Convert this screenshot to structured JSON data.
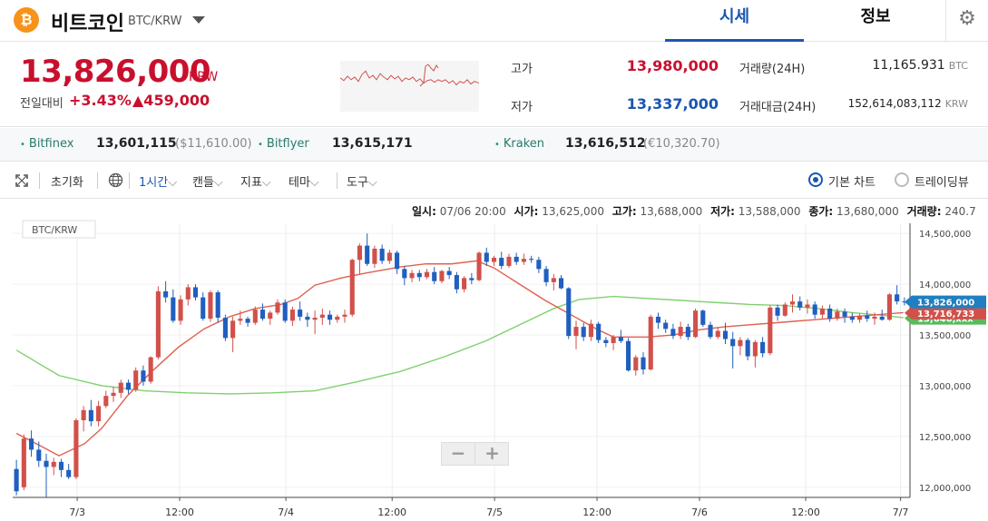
{
  "header": {
    "coin_icon": "bitcoin-icon",
    "coin_symbol": "₿",
    "coin_name": "비트코인",
    "pair": "BTC/KRW",
    "tabs": [
      {
        "label": "시세",
        "active": true
      },
      {
        "label": "정보",
        "active": false
      }
    ],
    "settings_icon": "gear-icon",
    "settings_glyph": "⚙"
  },
  "price": {
    "current": "13,826,000",
    "unit": "KRW",
    "change_label": "전일대비",
    "change_pct": "+3.43%",
    "change_abs": "▲459,000",
    "high_label": "고가",
    "high": "13,980,000",
    "low_label": "저가",
    "low": "13,337,000",
    "volume_label": "거래량(24H)",
    "volume": "11,165.931",
    "volume_unit": "BTC",
    "amount_label": "거래대금(24H)",
    "amount": "152,614,083,112",
    "amount_unit": "KRW"
  },
  "exchanges": [
    {
      "name": "Bitfinex",
      "price": "13,601,115",
      "sub": "($11,610.00)"
    },
    {
      "name": "Bitflyer",
      "price": "13,615,171",
      "sub": ""
    },
    {
      "name": "Kraken",
      "price": "13,616,512",
      "sub": "(€10,320.70)"
    }
  ],
  "toolbar": {
    "fullscreen_icon": "expand-icon",
    "reset": "초기화",
    "globe_icon": "globe-icon",
    "interval": "1시간",
    "candle": "캔들",
    "indicator": "지표",
    "theme": "테마",
    "tools": "도구",
    "chart_basic": "기본 차트",
    "chart_tradingview": "트레이딩뷰",
    "caret": "⌵"
  },
  "candle_info": {
    "time_label": "일시:",
    "time": "07/06 20:00",
    "open_label": "시가:",
    "open": "13,625,000",
    "high_label": "고가:",
    "high": "13,688,000",
    "low_label": "저가:",
    "low": "13,588,000",
    "close_label": "종가:",
    "close": "13,680,000",
    "volume_label": "거래량:",
    "volume": "240.7"
  },
  "zoom": {
    "minus": "−",
    "plus": "+"
  },
  "colors": {
    "up": "#d2504a",
    "down": "#1f5fbf",
    "ma_short": "#e0604f",
    "ma_long": "#7fd06f",
    "accent": "#1a56b0"
  },
  "chart_data": {
    "type": "candlestick",
    "pair_label": "BTC/KRW",
    "x_tick_labels": [
      "7/3",
      "12:00",
      "7/4",
      "12:00",
      "7/5",
      "12:00",
      "7/6",
      "12:00",
      "7/7"
    ],
    "y_tick_labels": [
      "12,000,000",
      "12,500,000",
      "13,000,000",
      "13,500,000",
      "14,000,000",
      "14,500,000"
    ],
    "ylim": [
      11900000,
      14600000
    ],
    "price_tags": [
      {
        "label": "13,826,000",
        "value": 13826000,
        "color": "#1f7fc0"
      },
      {
        "label": "13,716,733",
        "value": 13716733,
        "color": "#d2504a"
      },
      {
        "label": "13,646,xxx",
        "value": 13665000,
        "color": "#5cb85c"
      }
    ],
    "candles": [
      [
        12180000,
        12270000,
        11920000,
        11960000
      ],
      [
        12000000,
        12520000,
        11970000,
        12480000
      ],
      [
        12480000,
        12560000,
        12300000,
        12370000
      ],
      [
        12370000,
        12450000,
        12200000,
        12260000
      ],
      [
        12260000,
        12330000,
        11900000,
        12200000
      ],
      [
        12200000,
        12290000,
        12120000,
        12250000
      ],
      [
        12250000,
        12280000,
        12100000,
        12170000
      ],
      [
        12170000,
        12230000,
        12080000,
        12100000
      ],
      [
        12100000,
        12680000,
        12080000,
        12660000
      ],
      [
        12660000,
        12800000,
        12550000,
        12760000
      ],
      [
        12760000,
        12860000,
        12600000,
        12650000
      ],
      [
        12650000,
        12850000,
        12600000,
        12800000
      ],
      [
        12800000,
        12950000,
        12780000,
        12900000
      ],
      [
        12900000,
        12990000,
        12840000,
        12930000
      ],
      [
        12930000,
        13060000,
        12880000,
        13030000
      ],
      [
        13030000,
        13060000,
        12920000,
        12960000
      ],
      [
        12960000,
        13180000,
        12940000,
        13150000
      ],
      [
        13150000,
        13200000,
        13000000,
        13040000
      ],
      [
        13040000,
        13290000,
        13020000,
        13280000
      ],
      [
        13280000,
        13980000,
        13260000,
        13930000
      ],
      [
        13930000,
        14030000,
        13820000,
        13870000
      ],
      [
        13870000,
        13950000,
        13620000,
        13640000
      ],
      [
        13640000,
        13890000,
        13600000,
        13850000
      ],
      [
        13850000,
        14000000,
        13790000,
        13970000
      ],
      [
        13970000,
        14000000,
        13840000,
        13870000
      ],
      [
        13870000,
        13920000,
        13640000,
        13660000
      ],
      [
        13660000,
        13940000,
        13630000,
        13920000
      ],
      [
        13920000,
        13940000,
        13620000,
        13670000
      ],
      [
        13670000,
        13700000,
        13440000,
        13470000
      ],
      [
        13470000,
        13680000,
        13330000,
        13640000
      ],
      [
        13640000,
        13740000,
        13600000,
        13660000
      ],
      [
        13660000,
        13680000,
        13580000,
        13620000
      ],
      [
        13620000,
        13780000,
        13600000,
        13750000
      ],
      [
        13750000,
        13810000,
        13640000,
        13660000
      ],
      [
        13660000,
        13740000,
        13600000,
        13720000
      ],
      [
        13720000,
        13850000,
        13700000,
        13820000
      ],
      [
        13820000,
        13850000,
        13620000,
        13640000
      ],
      [
        13640000,
        13780000,
        13590000,
        13750000
      ],
      [
        13750000,
        13830000,
        13640000,
        13680000
      ],
      [
        13680000,
        13720000,
        13580000,
        13650000
      ],
      [
        13650000,
        13740000,
        13510000,
        13670000
      ],
      [
        13670000,
        13760000,
        13600000,
        13700000
      ],
      [
        13700000,
        13740000,
        13600000,
        13650000
      ],
      [
        13650000,
        13700000,
        13620000,
        13680000
      ],
      [
        13680000,
        13750000,
        13620000,
        13700000
      ],
      [
        13700000,
        14250000,
        13680000,
        14240000
      ],
      [
        14240000,
        14400000,
        14100000,
        14380000
      ],
      [
        14380000,
        14500000,
        14180000,
        14200000
      ],
      [
        14200000,
        14380000,
        14160000,
        14350000
      ],
      [
        14350000,
        14390000,
        14200000,
        14230000
      ],
      [
        14230000,
        14340000,
        14200000,
        14310000
      ],
      [
        14310000,
        14330000,
        14100000,
        14150000
      ],
      [
        14150000,
        14180000,
        13990000,
        14060000
      ],
      [
        14060000,
        14140000,
        14020000,
        14110000
      ],
      [
        14110000,
        14140000,
        14030000,
        14070000
      ],
      [
        14070000,
        14150000,
        14050000,
        14120000
      ],
      [
        14120000,
        14170000,
        14000000,
        14030000
      ],
      [
        14030000,
        14140000,
        14010000,
        14130000
      ],
      [
        14130000,
        14170000,
        14050000,
        14090000
      ],
      [
        14090000,
        14120000,
        13910000,
        13950000
      ],
      [
        13950000,
        14080000,
        13920000,
        14060000
      ],
      [
        14060000,
        14110000,
        14000000,
        14040000
      ],
      [
        14040000,
        14320000,
        14030000,
        14310000
      ],
      [
        14310000,
        14360000,
        14180000,
        14220000
      ],
      [
        14220000,
        14280000,
        14180000,
        14260000
      ],
      [
        14260000,
        14320000,
        14150000,
        14180000
      ],
      [
        14180000,
        14300000,
        14160000,
        14270000
      ],
      [
        14270000,
        14310000,
        14190000,
        14220000
      ],
      [
        14220000,
        14300000,
        14190000,
        14250000
      ],
      [
        14250000,
        14280000,
        14210000,
        14240000
      ],
      [
        14240000,
        14270000,
        14110000,
        14150000
      ],
      [
        14150000,
        14180000,
        13980000,
        14020000
      ],
      [
        14020000,
        14100000,
        13940000,
        14060000
      ],
      [
        14060000,
        14090000,
        13950000,
        13960000
      ],
      [
        13960000,
        13970000,
        13460000,
        13490000
      ],
      [
        13490000,
        13640000,
        13360000,
        13580000
      ],
      [
        13580000,
        13620000,
        13440000,
        13480000
      ],
      [
        13480000,
        13650000,
        13440000,
        13610000
      ],
      [
        13610000,
        13630000,
        13420000,
        13450000
      ],
      [
        13450000,
        13480000,
        13380000,
        13420000
      ],
      [
        13420000,
        13500000,
        13350000,
        13480000
      ],
      [
        13480000,
        13550000,
        13420000,
        13440000
      ],
      [
        13440000,
        13470000,
        13140000,
        13150000
      ],
      [
        13150000,
        13300000,
        13100000,
        13280000
      ],
      [
        13280000,
        13330000,
        13110000,
        13160000
      ],
      [
        13160000,
        13700000,
        13150000,
        13680000
      ],
      [
        13680000,
        13720000,
        13560000,
        13620000
      ],
      [
        13620000,
        13650000,
        13520000,
        13560000
      ],
      [
        13560000,
        13610000,
        13460000,
        13490000
      ],
      [
        13490000,
        13630000,
        13460000,
        13580000
      ],
      [
        13580000,
        13610000,
        13450000,
        13480000
      ],
      [
        13480000,
        13760000,
        13470000,
        13740000
      ],
      [
        13740000,
        13750000,
        13580000,
        13600000
      ],
      [
        13600000,
        13630000,
        13460000,
        13480000
      ],
      [
        13480000,
        13570000,
        13460000,
        13540000
      ],
      [
        13540000,
        13620000,
        13410000,
        13460000
      ],
      [
        13460000,
        13530000,
        13170000,
        13390000
      ],
      [
        13390000,
        13480000,
        13300000,
        13450000
      ],
      [
        13450000,
        13470000,
        13250000,
        13290000
      ],
      [
        13290000,
        13450000,
        13180000,
        13430000
      ],
      [
        13430000,
        13480000,
        13280000,
        13320000
      ],
      [
        13320000,
        13790000,
        13300000,
        13770000
      ],
      [
        13770000,
        13800000,
        13640000,
        13690000
      ],
      [
        13690000,
        13820000,
        13680000,
        13800000
      ],
      [
        13800000,
        13900000,
        13720000,
        13830000
      ],
      [
        13830000,
        13880000,
        13740000,
        13770000
      ],
      [
        13770000,
        13850000,
        13710000,
        13800000
      ],
      [
        13800000,
        13830000,
        13660000,
        13700000
      ],
      [
        13700000,
        13790000,
        13660000,
        13760000
      ],
      [
        13760000,
        13800000,
        13630000,
        13660000
      ],
      [
        13660000,
        13760000,
        13640000,
        13730000
      ],
      [
        13730000,
        13760000,
        13620000,
        13680000
      ],
      [
        13680000,
        13720000,
        13620000,
        13650000
      ],
      [
        13650000,
        13710000,
        13620000,
        13690000
      ],
      [
        13690000,
        13740000,
        13630000,
        13660000
      ],
      [
        13660000,
        13720000,
        13600000,
        13680000
      ],
      [
        13680000,
        13750000,
        13640000,
        13650000
      ],
      [
        13650000,
        13910000,
        13640000,
        13900000
      ],
      [
        13900000,
        13990000,
        13800000,
        13830000
      ],
      [
        13830000,
        13870000,
        13790000,
        13826000
      ]
    ],
    "ma_short": [
      [
        0,
        12530000
      ],
      [
        6,
        12400000
      ],
      [
        10,
        12310000
      ],
      [
        16,
        12430000
      ],
      [
        20,
        12580000
      ],
      [
        26,
        12900000
      ],
      [
        32,
        13150000
      ],
      [
        38,
        13380000
      ],
      [
        44,
        13560000
      ],
      [
        50,
        13680000
      ],
      [
        56,
        13760000
      ],
      [
        62,
        13800000
      ],
      [
        66,
        13860000
      ],
      [
        70,
        13990000
      ],
      [
        76,
        14060000
      ],
      [
        82,
        14110000
      ],
      [
        90,
        14170000
      ],
      [
        96,
        14200000
      ],
      [
        102,
        14200000
      ],
      [
        108,
        14230000
      ],
      [
        112,
        14160000
      ],
      [
        118,
        14000000
      ],
      [
        124,
        13840000
      ],
      [
        130,
        13700000
      ],
      [
        136,
        13560000
      ],
      [
        140,
        13480000
      ],
      [
        148,
        13480000
      ],
      [
        154,
        13500000
      ],
      [
        160,
        13550000
      ],
      [
        166,
        13580000
      ],
      [
        172,
        13600000
      ],
      [
        178,
        13620000
      ],
      [
        184,
        13640000
      ],
      [
        190,
        13660000
      ],
      [
        196,
        13680000
      ],
      [
        202,
        13700000
      ],
      [
        208,
        13720000
      ]
    ],
    "ma_long": [
      [
        0,
        13350000
      ],
      [
        10,
        13100000
      ],
      [
        20,
        13000000
      ],
      [
        30,
        12950000
      ],
      [
        40,
        12930000
      ],
      [
        50,
        12920000
      ],
      [
        60,
        12930000
      ],
      [
        70,
        12950000
      ],
      [
        80,
        13040000
      ],
      [
        90,
        13140000
      ],
      [
        100,
        13280000
      ],
      [
        110,
        13440000
      ],
      [
        120,
        13640000
      ],
      [
        126,
        13760000
      ],
      [
        132,
        13850000
      ],
      [
        140,
        13880000
      ],
      [
        148,
        13860000
      ],
      [
        156,
        13840000
      ],
      [
        164,
        13820000
      ],
      [
        172,
        13800000
      ],
      [
        180,
        13790000
      ],
      [
        188,
        13760000
      ],
      [
        196,
        13720000
      ],
      [
        204,
        13690000
      ],
      [
        208,
        13670000
      ]
    ]
  }
}
